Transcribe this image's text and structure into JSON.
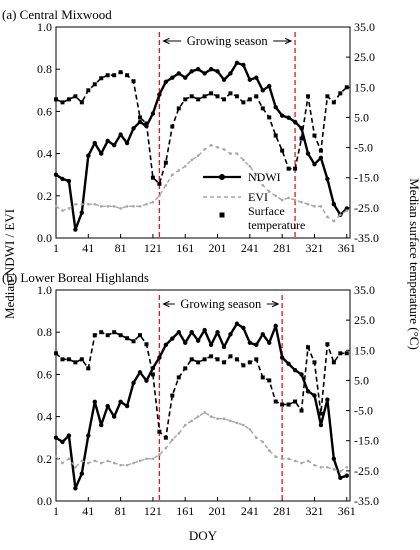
{
  "figure": {
    "ylabel_left": "Median NDWI / EVI",
    "ylabel_right": "Median surface temperature (°C)",
    "xlabel": "DOY",
    "growing_label": "Growing season",
    "legend": [
      {
        "key": "ndwi",
        "label": "NDWI"
      },
      {
        "key": "evi",
        "label": "EVI"
      },
      {
        "key": "lst",
        "label": "Surface temperature"
      }
    ],
    "colors": {
      "ndwi": "#000000",
      "evi": "#a6a6a6",
      "lst": "#000000",
      "growing": "#e8141b"
    }
  },
  "chart_data": [
    {
      "type": "line",
      "title": "(a) Central Mixwood",
      "x": [
        1,
        9,
        17,
        25,
        33,
        41,
        49,
        57,
        65,
        73,
        81,
        89,
        97,
        105,
        113,
        121,
        129,
        137,
        145,
        153,
        161,
        169,
        177,
        185,
        193,
        201,
        209,
        217,
        225,
        233,
        241,
        249,
        257,
        265,
        273,
        281,
        289,
        297,
        305,
        313,
        321,
        329,
        337,
        345,
        353,
        361
      ],
      "xticks": [
        1,
        41,
        81,
        121,
        161,
        201,
        241,
        281,
        321,
        361
      ],
      "ylim_left": [
        0,
        1.0
      ],
      "yticks_left": [
        "0.0",
        "0.2",
        "0.4",
        "0.6",
        "0.8",
        "1.0"
      ],
      "ylim_right": [
        -35,
        35
      ],
      "yticks_right": [
        "35.0",
        "25.0",
        "15.0",
        "5.0",
        "-5.0",
        "-15.0",
        "-25.0",
        "-35.0"
      ],
      "growing_season": [
        129,
        297
      ],
      "series": [
        {
          "name": "NDWI",
          "axis": "left",
          "values": [
            0.3,
            0.28,
            0.27,
            0.04,
            0.12,
            0.39,
            0.45,
            0.4,
            0.46,
            0.44,
            0.49,
            0.45,
            0.52,
            0.55,
            0.53,
            0.59,
            0.68,
            0.74,
            0.76,
            0.78,
            0.76,
            0.79,
            0.8,
            0.78,
            0.8,
            0.79,
            0.75,
            0.78,
            0.83,
            0.82,
            0.75,
            0.76,
            0.7,
            0.72,
            0.62,
            0.58,
            0.57,
            0.55,
            0.52,
            0.4,
            0.35,
            0.38,
            0.28,
            0.16,
            0.11,
            0.14
          ]
        },
        {
          "name": "EVI",
          "axis": "left",
          "values": [
            0.15,
            0.13,
            0.14,
            0.16,
            0.16,
            0.16,
            0.16,
            0.15,
            0.15,
            0.15,
            0.14,
            0.15,
            0.15,
            0.15,
            0.16,
            0.17,
            0.2,
            0.25,
            0.3,
            0.32,
            0.34,
            0.37,
            0.39,
            0.42,
            0.44,
            0.43,
            0.42,
            0.4,
            0.4,
            0.37,
            0.34,
            0.3,
            0.25,
            0.22,
            0.2,
            0.18,
            0.19,
            0.18,
            0.17,
            0.16,
            0.15,
            0.15,
            0.1,
            0.08,
            0.11,
            0.13
          ]
        },
        {
          "name": "Surface temperature",
          "axis": "right",
          "values": [
            11,
            10,
            11,
            12,
            10,
            14,
            16,
            18,
            19,
            19,
            20,
            19,
            17,
            5,
            3,
            -15,
            -17,
            -10,
            2,
            8,
            11,
            12,
            11,
            12,
            13,
            12,
            11,
            13,
            12,
            10,
            11,
            12,
            8,
            5,
            -1,
            -6,
            -12,
            -12,
            -2,
            12,
            -1,
            -6,
            12,
            10,
            13,
            15
          ]
        }
      ]
    },
    {
      "type": "line",
      "title": "(b) Lower Boreal Highlands",
      "x": [
        1,
        9,
        17,
        25,
        33,
        41,
        49,
        57,
        65,
        73,
        81,
        89,
        97,
        105,
        113,
        121,
        129,
        137,
        145,
        153,
        161,
        169,
        177,
        185,
        193,
        201,
        209,
        217,
        225,
        233,
        241,
        249,
        257,
        265,
        273,
        281,
        289,
        297,
        305,
        313,
        321,
        329,
        337,
        345,
        353,
        361
      ],
      "xticks": [
        1,
        41,
        81,
        121,
        161,
        201,
        241,
        281,
        321,
        361
      ],
      "ylim_left": [
        0,
        1.0
      ],
      "yticks_left": [
        "0.0",
        "0.2",
        "0.4",
        "0.6",
        "0.8",
        "1.0"
      ],
      "ylim_right": [
        -35,
        35
      ],
      "yticks_right": [
        "35.0",
        "25.0",
        "15.0",
        "5.0",
        "-5.0",
        "-15.0",
        "-25.0",
        "-35.0"
      ],
      "growing_season": [
        129,
        281
      ],
      "series": [
        {
          "name": "NDWI",
          "axis": "left",
          "values": [
            0.3,
            0.28,
            0.31,
            0.06,
            0.13,
            0.31,
            0.47,
            0.36,
            0.45,
            0.4,
            0.47,
            0.45,
            0.56,
            0.61,
            0.57,
            0.63,
            0.68,
            0.74,
            0.77,
            0.8,
            0.75,
            0.8,
            0.76,
            0.81,
            0.74,
            0.8,
            0.73,
            0.79,
            0.84,
            0.82,
            0.75,
            0.74,
            0.79,
            0.75,
            0.83,
            0.68,
            0.65,
            0.62,
            0.6,
            0.52,
            0.5,
            0.36,
            0.48,
            0.2,
            0.11,
            0.12
          ]
        },
        {
          "name": "EVI",
          "axis": "left",
          "values": [
            0.21,
            0.18,
            0.2,
            0.16,
            0.19,
            0.18,
            0.19,
            0.18,
            0.19,
            0.18,
            0.17,
            0.17,
            0.18,
            0.19,
            0.2,
            0.2,
            0.22,
            0.25,
            0.29,
            0.32,
            0.36,
            0.38,
            0.4,
            0.42,
            0.4,
            0.39,
            0.39,
            0.38,
            0.37,
            0.36,
            0.34,
            0.3,
            0.28,
            0.24,
            0.21,
            0.2,
            0.2,
            0.19,
            0.18,
            0.19,
            0.17,
            0.16,
            0.16,
            0.15,
            0.14,
            0.16
          ]
        },
        {
          "name": "Surface temperature",
          "axis": "right",
          "values": [
            14,
            12,
            12,
            11,
            12,
            9,
            20,
            21,
            20,
            21,
            20,
            19,
            18,
            20,
            17,
            7,
            -12,
            -14,
            0,
            6,
            9,
            12,
            11,
            12,
            13,
            12,
            11,
            13,
            12,
            10,
            11,
            12,
            6,
            5,
            -2,
            -3,
            -3,
            -2,
            -5,
            16,
            11,
            -6,
            17,
            11,
            14,
            14
          ]
        }
      ]
    }
  ]
}
